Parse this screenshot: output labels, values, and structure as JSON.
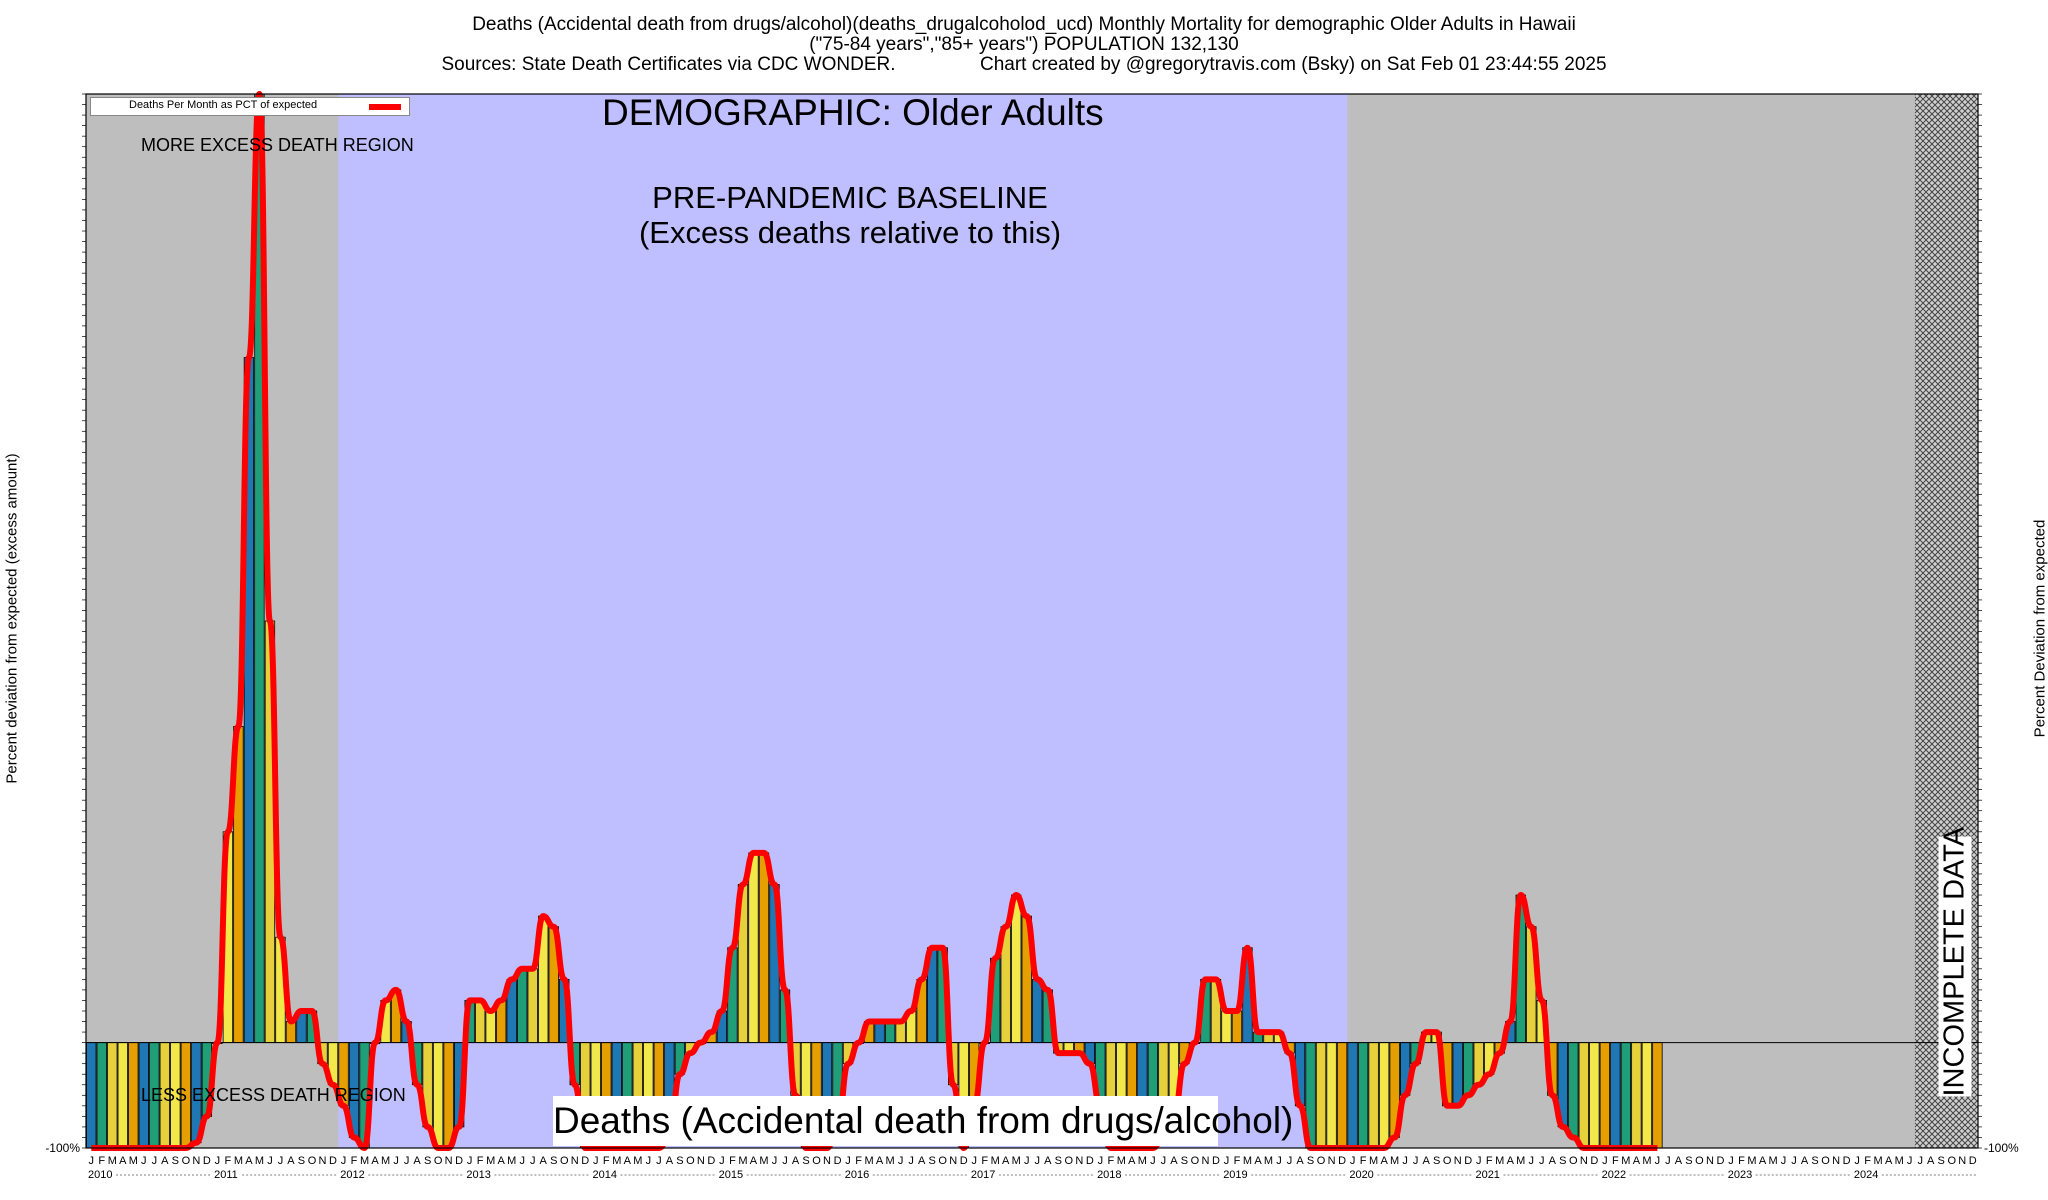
{
  "header": {
    "line1": "Deaths (Accidental death from drugs/alcohol)(deaths_drugalcoholod_ucd) Monthly Mortality for demographic Older Adults in Hawaii",
    "line2": "(\"75-84 years\",\"85+ years\") POPULATION 132,130",
    "line3": "Sources: State Death Certificates via CDC WONDER.                Chart created by @gregorytravis.com (Bsky) on Sat Feb 01 23:44:55 2025"
  },
  "annotations": {
    "demographic": "DEMOGRAPHIC: Older Adults",
    "baseline_line1": "PRE-PANDEMIC BASELINE",
    "baseline_line2": "(Excess deaths relative to this)",
    "more_excess": "MORE EXCESS DEATH REGION",
    "less_excess": "LESS EXCESS DEATH REGION",
    "incomplete": "INCOMPLETE DATA",
    "footer_title": "Deaths (Accidental death from drugs/alcohol)"
  },
  "legend": {
    "label": "Deaths Per Month as PCT of expected"
  },
  "colors": {
    "grey_region": "#bebebe",
    "baseline_region": "#bfbfff",
    "line": "#ff0000",
    "bar_palette": [
      "#1f78b4",
      "#1f9e77",
      "#e6d03c",
      "#f2e84a",
      "#e69f00"
    ]
  },
  "chart_data": {
    "type": "bar",
    "ylabel_left": "Percent deviation from expected (excess amount)",
    "ylabel_right": "Percent Deviation from expected",
    "ylim": [
      -100,
      900
    ],
    "y_tick_bottom": "-100%",
    "month_letters": [
      "J",
      "F",
      "M",
      "A",
      "M",
      "J",
      "J",
      "A",
      "S",
      "O",
      "N",
      "D"
    ],
    "years": [
      "2010",
      "2011",
      "2012",
      "2013",
      "2014",
      "2015",
      "2016",
      "2017",
      "2018",
      "2019",
      "2020",
      "2021",
      "2022",
      "2023",
      "2024"
    ],
    "regions": [
      {
        "label": "MORE EXCESS DEATH REGION",
        "start": "2010-01",
        "end": "2011-12"
      },
      {
        "label": "PRE-PANDEMIC BASELINE",
        "start": "2012-01",
        "end": "2019-12"
      },
      {
        "label": "INCOMPLETE DATA",
        "start": "2024-07",
        "end": "2024-12"
      }
    ],
    "series": [
      {
        "name": "Deaths Per Month as PCT of expected",
        "values": [
          -100,
          -100,
          -100,
          -100,
          -100,
          -100,
          -100,
          -100,
          -100,
          -100,
          -95,
          -70,
          0,
          200,
          300,
          650,
          900,
          400,
          100,
          20,
          30,
          30,
          -20,
          -40,
          -60,
          -90,
          -100,
          0,
          40,
          50,
          20,
          -40,
          -80,
          -100,
          -100,
          -80,
          40,
          40,
          30,
          40,
          60,
          70,
          70,
          120,
          110,
          60,
          -40,
          -100,
          -100,
          -100,
          -100,
          -100,
          -100,
          -100,
          -100,
          -90,
          -30,
          -10,
          0,
          10,
          30,
          90,
          150,
          180,
          180,
          150,
          50,
          -50,
          -100,
          -100,
          -100,
          -80,
          -20,
          0,
          20,
          20,
          20,
          20,
          30,
          60,
          90,
          90,
          -40,
          -100,
          -60,
          0,
          80,
          110,
          140,
          120,
          60,
          50,
          -10,
          -10,
          -10,
          -20,
          -60,
          -100,
          -100,
          -100,
          -100,
          -100,
          -90,
          -70,
          -20,
          0,
          60,
          60,
          30,
          30,
          90,
          10,
          10,
          10,
          -10,
          -60,
          -100,
          -100,
          -100,
          -100,
          -100,
          -100,
          -100,
          -100,
          -90,
          -50,
          -20,
          10,
          10,
          -60,
          -60,
          -50,
          -40,
          -30,
          -10,
          20,
          140,
          110,
          40,
          -50,
          -80,
          -90,
          -100,
          -100,
          -100,
          -100,
          -100,
          -100,
          -100,
          -100
        ]
      }
    ]
  }
}
